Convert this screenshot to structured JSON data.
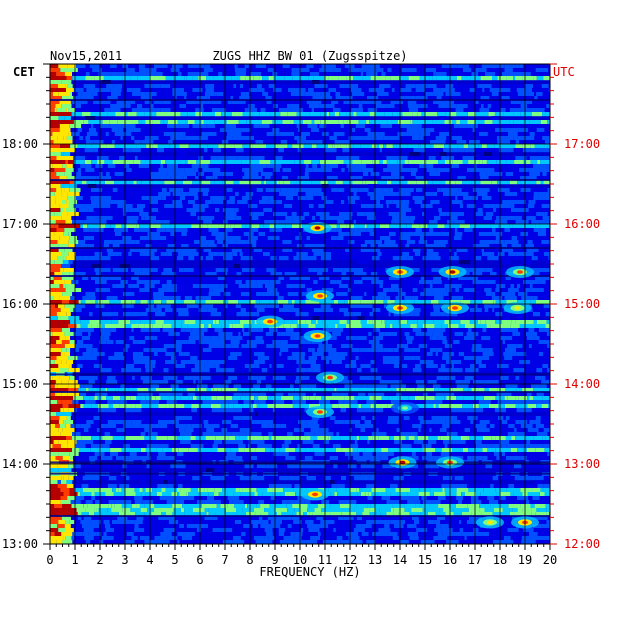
{
  "chart_data": {
    "type": "heatmap",
    "title_left": "Nov15,2011",
    "title_center": "ZUGS HHZ BW 01 (Zugsspitze)",
    "label_left_timezone": "CET",
    "label_right_timezone": "UTC",
    "xlabel": "FREQUENCY (HZ)",
    "xlim": [
      0,
      20
    ],
    "x_ticks": [
      "0",
      "1",
      "2",
      "3",
      "4",
      "5",
      "6",
      "7",
      "8",
      "9",
      "10",
      "11",
      "12",
      "13",
      "14",
      "15",
      "16",
      "17",
      "18",
      "19",
      "20"
    ],
    "y_ticks_cet": [
      "13:00",
      "14:00",
      "15:00",
      "16:00",
      "17:00",
      "18:00"
    ],
    "y_ticks_utc": [
      "12:00",
      "13:00",
      "14:00",
      "15:00",
      "16:00",
      "17:00"
    ],
    "time_range_cet_hours": [
      13,
      19
    ],
    "grid": true,
    "colormap": [
      "#00007f",
      "#0000e6",
      "#0050ff",
      "#00c8ff",
      "#7fff7f",
      "#ffe600",
      "#ff3c00",
      "#b40000"
    ],
    "hotspots": [
      {
        "freq": 10.7,
        "time": 16.95,
        "intensity": 0.9
      },
      {
        "freq": 10.8,
        "time": 16.1,
        "intensity": 0.85
      },
      {
        "freq": 10.7,
        "time": 15.6,
        "intensity": 0.8
      },
      {
        "freq": 11.2,
        "time": 15.08,
        "intensity": 0.75
      },
      {
        "freq": 10.8,
        "time": 14.65,
        "intensity": 0.75
      },
      {
        "freq": 14.1,
        "time": 14.02,
        "intensity": 0.9
      },
      {
        "freq": 14.2,
        "time": 14.7,
        "intensity": 0.6
      },
      {
        "freq": 16.1,
        "time": 16.4,
        "intensity": 0.9
      },
      {
        "freq": 14.0,
        "time": 16.4,
        "intensity": 0.85
      },
      {
        "freq": 14.0,
        "time": 15.95,
        "intensity": 0.85
      },
      {
        "freq": 16.2,
        "time": 15.95,
        "intensity": 0.8
      },
      {
        "freq": 18.8,
        "time": 16.4,
        "intensity": 0.75
      },
      {
        "freq": 18.7,
        "time": 15.95,
        "intensity": 0.7
      },
      {
        "freq": 16.0,
        "time": 14.02,
        "intensity": 0.75
      },
      {
        "freq": 10.6,
        "time": 13.62,
        "intensity": 0.85
      },
      {
        "freq": 8.8,
        "time": 15.78,
        "intensity": 0.8
      },
      {
        "freq": 19.0,
        "time": 13.27,
        "intensity": 0.8
      },
      {
        "freq": 17.6,
        "time": 13.27,
        "intensity": 0.7
      }
    ]
  }
}
